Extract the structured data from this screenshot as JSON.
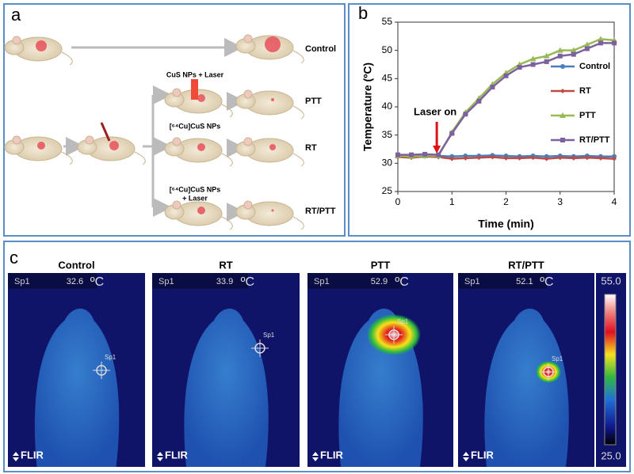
{
  "panel_a": {
    "label": "a",
    "groups": [
      "Control",
      "PTT",
      "RT",
      "RT/PTT"
    ],
    "treatments": [
      [
        "CuS NPs + Laser"
      ],
      [
        "[⁶⁴Cu]CuS NPs"
      ],
      [
        "[⁶⁴Cu]CuS NPs",
        "+ Laser"
      ]
    ]
  },
  "chart_data": {
    "type": "line",
    "panel_label": "b",
    "x_label": "Time (min)",
    "y_label": "Temperature (ºC)",
    "annotation": "Laser on",
    "annotation_x": 0.72,
    "x": [
      0,
      0.25,
      0.5,
      0.75,
      1,
      1.25,
      1.5,
      1.75,
      2,
      2.25,
      2.5,
      2.75,
      3,
      3.25,
      3.5,
      3.75,
      4
    ],
    "xlim": [
      0,
      4
    ],
    "xticks": [
      0,
      1,
      2,
      3,
      4
    ],
    "ylim": [
      25,
      55
    ],
    "yticks": [
      25,
      30,
      35,
      40,
      45,
      50,
      55
    ],
    "series": [
      {
        "name": "Control",
        "color": "#4a7ebb",
        "values": [
          31.4,
          31.3,
          31.4,
          31.3,
          31.2,
          31.3,
          31.3,
          31.4,
          31.3,
          31.2,
          31.3,
          31.2,
          31.3,
          31.2,
          31.3,
          31.2,
          31.2
        ]
      },
      {
        "name": "RT",
        "color": "#be4b48",
        "values": [
          31.1,
          31.0,
          31.2,
          31.1,
          30.8,
          30.9,
          31.0,
          31.1,
          30.9,
          30.9,
          31.0,
          30.8,
          31.0,
          30.9,
          31.0,
          30.9,
          30.8
        ]
      },
      {
        "name": "PTT",
        "color": "#98b954",
        "values": [
          31.3,
          31.2,
          31.3,
          31.3,
          35.5,
          39.0,
          41.5,
          44.0,
          46.0,
          47.5,
          48.5,
          49.0,
          50.0,
          50.0,
          51.0,
          52.0,
          51.8
        ]
      },
      {
        "name": "RT/PTT",
        "color": "#7d60a0",
        "values": [
          31.5,
          31.5,
          31.6,
          31.5,
          35.3,
          38.7,
          41.0,
          43.5,
          45.5,
          47.0,
          47.5,
          48.0,
          49.0,
          49.3,
          50.3,
          51.3,
          51.3
        ]
      }
    ]
  },
  "panel_c": {
    "label": "c",
    "images": [
      {
        "title": "Control",
        "spot": "Sp1",
        "reading": "32.6",
        "unit": "ºC",
        "marker": "Sp1",
        "logo": "FLIR"
      },
      {
        "title": "RT",
        "spot": "Sp1",
        "reading": "33.9",
        "unit": "ºC",
        "marker": "Sp1",
        "logo": "FLIR"
      },
      {
        "title": "PTT",
        "spot": "Sp1",
        "reading": "52.9",
        "unit": "ºC",
        "marker": "Sp1",
        "logo": "FLIR"
      },
      {
        "title": "RT/PTT",
        "spot": "Sp1",
        "reading": "52.1",
        "unit": "ºC",
        "marker": "Sp1",
        "logo": "FLIR"
      }
    ],
    "scale_max": "55.0",
    "scale_min": "25.0"
  }
}
